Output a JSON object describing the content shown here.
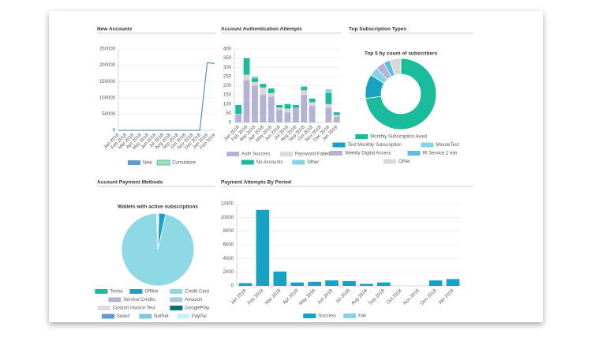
{
  "chart_data": [
    {
      "type": "line",
      "title": "New Accounts",
      "categories": [
        "Jan 2018",
        "Feb 2018",
        "Mar 2018",
        "Apr 2018",
        "May 2018",
        "Jun 2018",
        "Jul 2018",
        "Aug 2018",
        "Sep 2018",
        "Oct 2018",
        "Nov 2018",
        "Dec 2018",
        "Jan 2019",
        "Feb 2019"
      ],
      "series": [
        {
          "name": "New",
          "color": "#5b9bd5",
          "values": [
            0,
            0,
            0,
            0,
            0,
            0,
            0,
            0,
            0,
            0,
            0,
            0,
            208000,
            205000
          ]
        },
        {
          "name": "Cumulative",
          "color": "#9fdfc4",
          "values": [
            null,
            null,
            null,
            null,
            null,
            null,
            null,
            null,
            null,
            null,
            null,
            null,
            null,
            null
          ]
        }
      ],
      "ylim": [
        0,
        250000
      ],
      "yticks": [
        0,
        50000,
        100000,
        150000,
        200000,
        250000
      ],
      "grid": true
    },
    {
      "type": "bar",
      "stacked": true,
      "title": "Account Authentication Attempts",
      "categories": [
        "Jan 2018",
        "Feb 2018",
        "Mar 2018",
        "Apr 2018",
        "May 2018",
        "Jun 2018",
        "Jul 2018",
        "Aug 2018",
        "Sep 2018",
        "Oct 2018",
        "Nov 2018",
        "Dec 2018",
        "Jan 2019"
      ],
      "series": [
        {
          "name": "Auth Success",
          "color": "#b3b3d6",
          "values": [
            40,
            230,
            200,
            150,
            140,
            70,
            55,
            80,
            150,
            90,
            0,
            80,
            30
          ]
        },
        {
          "name": "Password Failed",
          "color": "#d9d9d9",
          "values": [
            5,
            30,
            20,
            40,
            20,
            10,
            20,
            0,
            25,
            20,
            0,
            20,
            10
          ]
        },
        {
          "name": "No Accounts",
          "color": "#1abc9c",
          "values": [
            50,
            90,
            20,
            20,
            25,
            15,
            25,
            15,
            20,
            20,
            0,
            60,
            15
          ]
        },
        {
          "name": "Other",
          "color": "#85d4e3",
          "values": [
            0,
            0,
            10,
            0,
            0,
            0,
            0,
            0,
            0,
            0,
            0,
            20,
            0
          ]
        }
      ],
      "ylim": [
        0,
        400
      ],
      "yticks": [
        0,
        50,
        100,
        150,
        200,
        250,
        300,
        350,
        400
      ],
      "grid": true
    },
    {
      "type": "doughnut",
      "title": "Top Subscription Types",
      "subtitle": "Top 5 by count of subscribers",
      "categories": [
        "Monthly Subscription Avast",
        "Test Monthly Subscription",
        "MinuteTest",
        "Weekly Digital Access",
        "IR Service 2 min",
        "Other"
      ],
      "values": [
        73,
        11,
        4,
        4,
        3,
        5
      ],
      "colors": [
        "#1abc9c",
        "#17a2c4",
        "#85d4e3",
        "#b3b3d6",
        "#5bc0de",
        "#d9d9d9"
      ]
    },
    {
      "type": "pie",
      "title": "Account Payment Methods",
      "subtitle": "Wallets with active subscriptions",
      "categories": [
        "Tesha",
        "Offline",
        "Credit Card",
        "Service Credits",
        "Amazon",
        "Custom Invoice Test",
        "GooglePlay",
        "Select",
        "NotSet",
        "PayPal"
      ],
      "values": [
        0.5,
        3,
        96,
        0,
        0,
        0.5,
        0,
        0,
        0,
        0
      ],
      "colors": [
        "#1abc9c",
        "#17a2c4",
        "#8fd8e6",
        "#b3b3d6",
        "#a9c9d3",
        "#dddddd",
        "#0a6e7c",
        "#5b9bd5",
        "#7fc9e0",
        "#c8f0f8"
      ]
    },
    {
      "type": "bar",
      "stacked": true,
      "title": "Payment Attempts By Period",
      "categories": [
        "Jan 2018",
        "Feb 2018",
        "Mar 2018",
        "Apr 2018",
        "May 2018",
        "Jun 2018",
        "Jul 2018",
        "Aug 2018",
        "Sep 2018",
        "Oct 2018",
        "Nov 2018",
        "Dec 2018",
        "Jan 2019"
      ],
      "series": [
        {
          "name": "Success",
          "color": "#17a2c4",
          "values": [
            400,
            11100,
            2100,
            500,
            600,
            800,
            700,
            300,
            500,
            0,
            0,
            800,
            1000
          ]
        },
        {
          "name": "Fail",
          "color": "#85d4e3",
          "values": [
            0,
            0,
            0,
            0,
            0,
            0,
            0,
            0,
            0,
            0,
            0,
            0,
            0
          ]
        }
      ],
      "ylim": [
        0,
        12000
      ],
      "yticks": [
        0,
        2000,
        4000,
        6000,
        8000,
        10000,
        12000
      ],
      "grid": true
    }
  ]
}
